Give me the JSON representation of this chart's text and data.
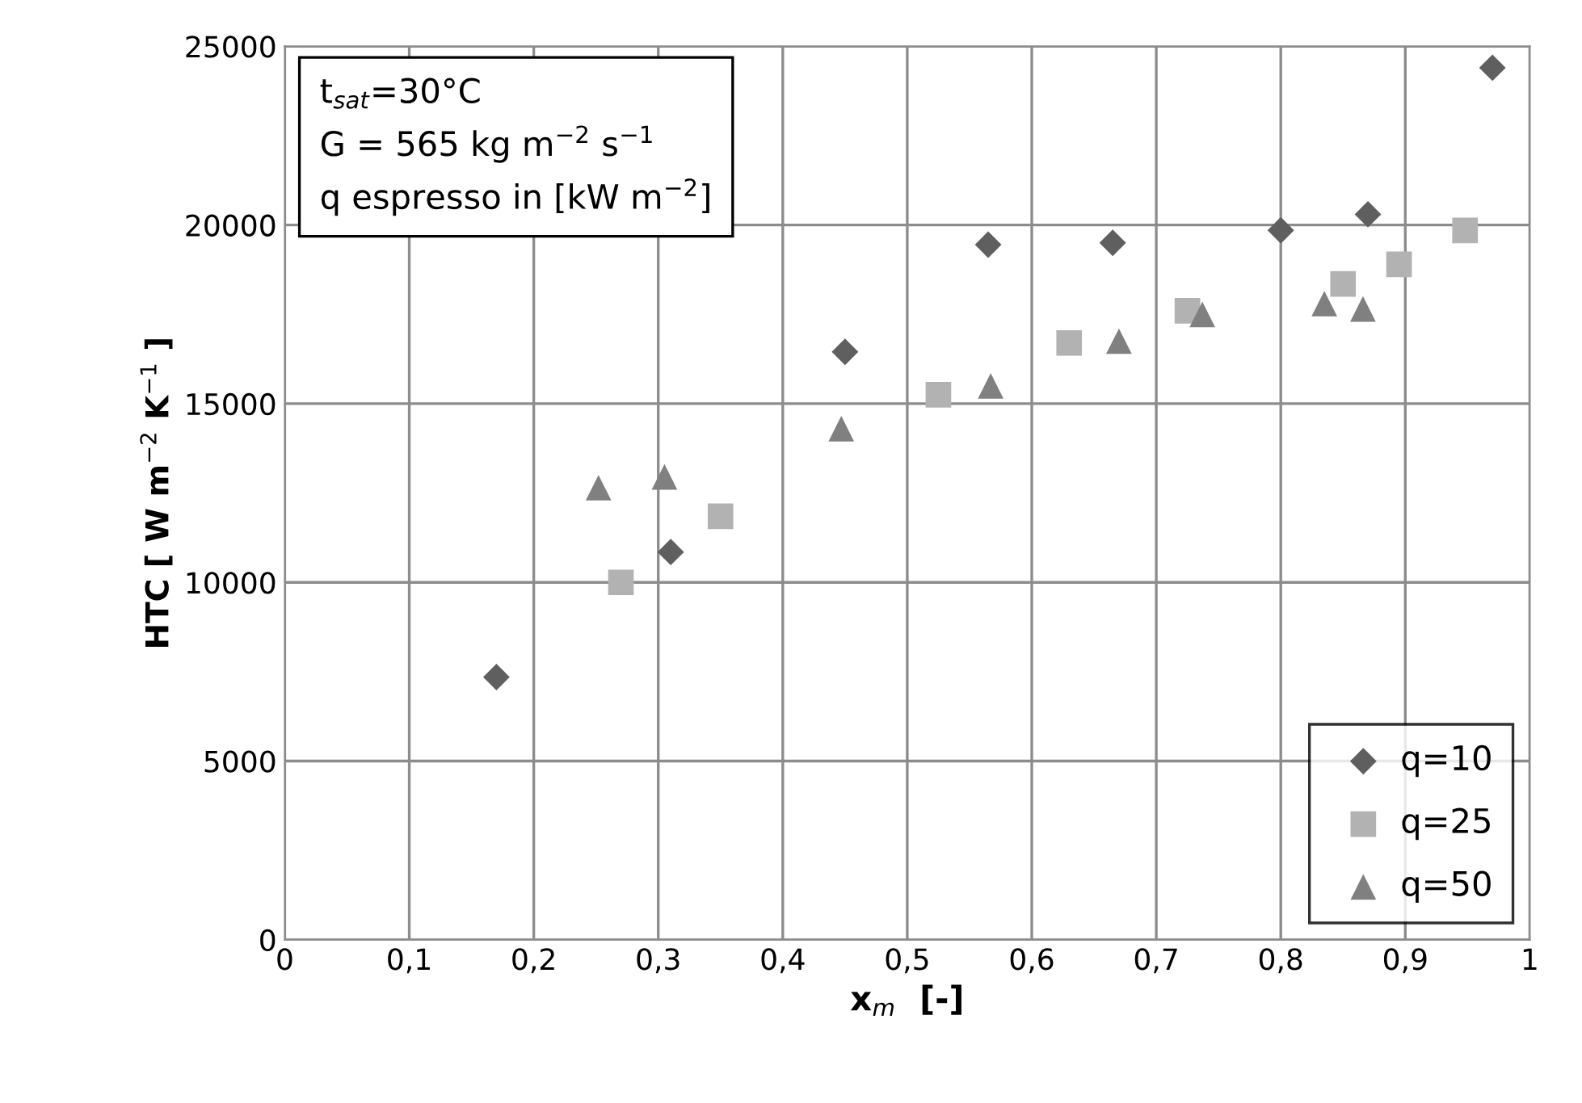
{
  "chart_data": {
    "type": "scatter",
    "xlabel": "x$_{m}$  [-]",
    "ylabel": "HTC [ W m$^{−2}$ K$^{−1}$ ]",
    "annotations": [
      "t$_{sat}$=30°C",
      "G = 565 kg m$^{−2}$ s$^{−1}$",
      "q espresso in [kW m$^{−2}$]"
    ],
    "series": [
      {
        "name": "q=10",
        "color": "#5f5f5f",
        "marker": "diamond",
        "x": [
          0.17,
          0.31,
          0.45,
          0.565,
          0.665,
          0.8,
          0.87,
          0.97
        ],
        "values": [
          7350,
          10850,
          16450,
          19450,
          19500,
          19850,
          20300,
          24400
        ]
      },
      {
        "name": "q=25",
        "color": "#b2b2b2",
        "marker": "square",
        "x": [
          0.27,
          0.35,
          0.525,
          0.63,
          0.725,
          0.85,
          0.895,
          0.948
        ],
        "values": [
          10000,
          11850,
          15250,
          16700,
          17600,
          18350,
          18900,
          19850
        ]
      },
      {
        "name": "q=50",
        "color": "#808080",
        "marker": "triangle",
        "x": [
          0.252,
          0.305,
          0.447,
          0.567,
          0.67,
          0.737,
          0.835,
          0.866
        ],
        "values": [
          12650,
          12950,
          14300,
          15500,
          16750,
          17500,
          17800,
          17650
        ]
      }
    ],
    "xlim": [
      0,
      1
    ],
    "ylim": [
      0,
      25000
    ],
    "xticks": [
      0,
      {
        "value": 0.1,
        "label": "0,1"
      },
      {
        "value": 0.2,
        "label": "0,2"
      },
      {
        "value": 0.3,
        "label": "0,3"
      },
      {
        "value": 0.4,
        "label": "0,4"
      },
      {
        "value": 0.5,
        "label": "0,5"
      },
      {
        "value": 0.6,
        "label": "0,6"
      },
      {
        "value": 0.7,
        "label": "0,7"
      },
      {
        "value": 0.8,
        "label": "0,8"
      },
      {
        "value": 0.9,
        "label": "0,9"
      },
      1
    ],
    "yticks": [
      0,
      5000,
      10000,
      15000,
      20000,
      25000
    ],
    "grid": true,
    "legend": "bottom right"
  }
}
